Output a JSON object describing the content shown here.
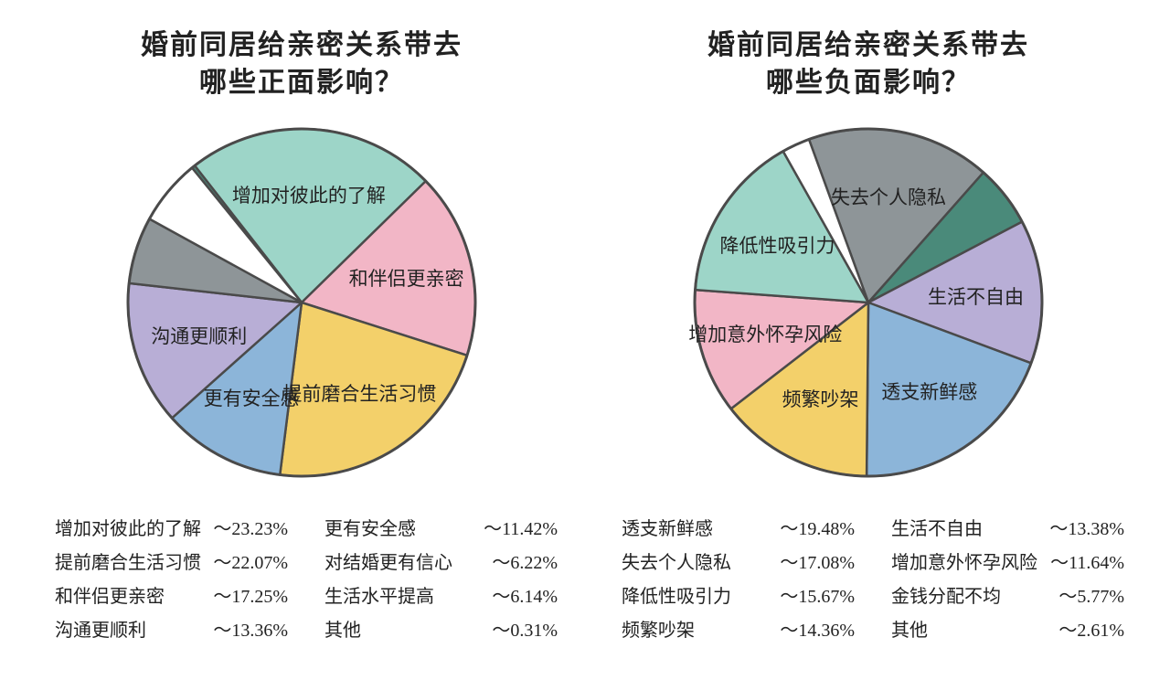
{
  "background_color": "#ffffff",
  "text_color": "#222222",
  "stroke_color": "#4a4a4a",
  "stroke_width": 2.5,
  "pie_radius": 190,
  "title_fontsize": 30,
  "slice_label_fontsize": 21,
  "legend_fontsize": 20,
  "left": {
    "title_line1": "婚前同居给亲密关系带去",
    "title_line2": "哪些正面影响？",
    "slices": [
      {
        "label": "增加对彼此的了解",
        "value": 23.23,
        "color": "#9dd5c8",
        "show_label": true
      },
      {
        "label": "和伴侣更亲密",
        "value": 17.25,
        "color": "#f2b6c6",
        "show_label": true
      },
      {
        "label": "提前磨合生活习惯",
        "value": 22.07,
        "color": "#f3d06a",
        "show_label": true
      },
      {
        "label": "更有安全感",
        "value": 11.42,
        "color": "#8cb5d9",
        "show_label": true
      },
      {
        "label": "沟通更顺利",
        "value": 13.36,
        "color": "#b8aed6",
        "show_label": true
      },
      {
        "label": "对结婚更有信心",
        "value": 6.22,
        "color": "#8e9598",
        "show_label": false
      },
      {
        "label": "生活水平提高",
        "value": 6.14,
        "color": "#ffffff",
        "show_label": false
      },
      {
        "label": "其他",
        "value": 0.31,
        "color": "#4a8a7a",
        "show_label": false
      }
    ],
    "start_angle_deg": -38,
    "legend_cols": [
      [
        {
          "label": "增加对彼此的了解",
          "value": "～23.23%"
        },
        {
          "label": "提前磨合生活习惯",
          "value": "～22.07%"
        },
        {
          "label": "和伴侣更亲密",
          "value": "～17.25%"
        },
        {
          "label": "沟通更顺利",
          "value": "～13.36%"
        }
      ],
      [
        {
          "label": "更有安全感",
          "value": "～11.42%"
        },
        {
          "label": "对结婚更有信心",
          "value": "～6.22%"
        },
        {
          "label": "生活水平提高",
          "value": "～6.14%"
        },
        {
          "label": "其他",
          "value": "～0.31%"
        }
      ]
    ]
  },
  "right": {
    "title_line1": "婚前同居给亲密关系带去",
    "title_line2": "哪些负面影响？",
    "slices": [
      {
        "label": "失去个人隐私",
        "value": 17.08,
        "color": "#8e9598",
        "show_label": true
      },
      {
        "label": "金钱分配不均",
        "value": 5.77,
        "color": "#4a8a7a",
        "show_label": false
      },
      {
        "label": "生活不自由",
        "value": 13.38,
        "color": "#b8aed6",
        "show_label": true
      },
      {
        "label": "透支新鲜感",
        "value": 19.48,
        "color": "#8cb5d9",
        "show_label": true
      },
      {
        "label": "频繁吵架",
        "value": 14.36,
        "color": "#f3d06a",
        "show_label": true
      },
      {
        "label": "增加意外怀孕风险",
        "value": 11.64,
        "color": "#f2b6c6",
        "show_label": true
      },
      {
        "label": "降低性吸引力",
        "value": 15.67,
        "color": "#9dd5c8",
        "show_label": true
      },
      {
        "label": "其他",
        "value": 2.61,
        "color": "#ffffff",
        "show_label": false
      }
    ],
    "start_angle_deg": -20,
    "legend_cols": [
      [
        {
          "label": "透支新鲜感",
          "value": "～19.48%"
        },
        {
          "label": "失去个人隐私",
          "value": "～17.08%"
        },
        {
          "label": "降低性吸引力",
          "value": "～15.67%"
        },
        {
          "label": "频繁吵架",
          "value": "～14.36%"
        }
      ],
      [
        {
          "label": "生活不自由",
          "value": "～13.38%"
        },
        {
          "label": "增加意外怀孕风险",
          "value": "～11.64%"
        },
        {
          "label": "金钱分配不均",
          "value": "～5.77%"
        },
        {
          "label": "其他",
          "value": "～2.61%"
        }
      ]
    ]
  }
}
